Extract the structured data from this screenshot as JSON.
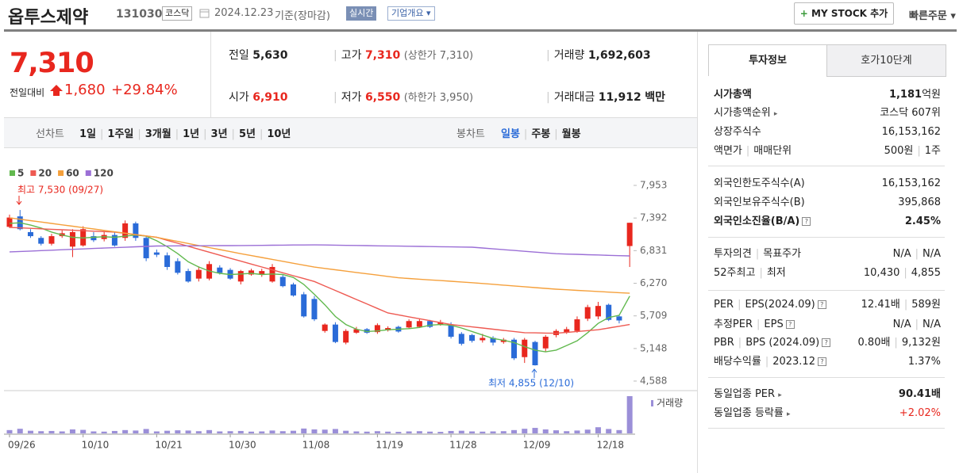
{
  "header": {
    "name": "옵투스제약",
    "code": "131030",
    "market": "코스닥",
    "date": "2024.12.23",
    "basis": "기준(장마감)",
    "realtime": "실시간",
    "company": "기업개요",
    "mystock": "MY STOCK 추가",
    "quick": "빠른주문"
  },
  "price": {
    "current": "7,310",
    "change_label": "전일대비",
    "change": "1,680",
    "rate": "+29.84%"
  },
  "summary": [
    {
      "label": "전일",
      "value": "5,630"
    },
    {
      "label": "고가",
      "value": "7,310",
      "note": "(상한가 7,310)"
    },
    {
      "label": "거래량",
      "value": "1,692,603"
    },
    {
      "label": "시가",
      "value": "6,910"
    },
    {
      "label": "저가",
      "value": "6,550",
      "note": "(하한가 3,950)"
    },
    {
      "label": "거래대금",
      "value": "11,912",
      "unit": "백만"
    }
  ],
  "chart_tabs": {
    "line_label": "선차트",
    "line": [
      "1일",
      "1주일",
      "3개월",
      "1년",
      "3년",
      "5년",
      "10년"
    ],
    "candle_label": "봉차트",
    "candle": [
      "일봉",
      "주봉",
      "월봉"
    ]
  },
  "chart_data": {
    "type": "candlestick",
    "categories": [
      "09/26",
      null,
      null,
      null,
      null,
      null,
      null,
      "10/10",
      null,
      null,
      null,
      null,
      null,
      null,
      "10/21",
      null,
      null,
      null,
      null,
      null,
      null,
      "10/30",
      null,
      null,
      null,
      null,
      null,
      null,
      "11/08",
      null,
      null,
      null,
      null,
      null,
      null,
      "11/19",
      null,
      null,
      null,
      null,
      null,
      null,
      "11/28",
      null,
      null,
      null,
      null,
      null,
      null,
      "12/09",
      null,
      null,
      null,
      null,
      null,
      null,
      "12/18",
      null,
      null,
      null
    ],
    "open": [
      7240,
      7420,
      7150,
      7050,
      6950,
      7080,
      6900,
      6920,
      7080,
      7030,
      7100,
      7050,
      7300,
      7050,
      6800,
      6750,
      6650,
      6480,
      6350,
      6350,
      6540,
      6500,
      6300,
      6420,
      6420,
      6300,
      6380,
      6250,
      6080,
      6000,
      5450,
      5560,
      5250,
      5420,
      5480,
      5430,
      5460,
      5520,
      5510,
      5520,
      5620,
      5560,
      5550,
      5400,
      5380,
      5290,
      5330,
      5260,
      5300,
      5000,
      5260,
      5150,
      5380,
      5420,
      5450,
      5660,
      5700,
      5900,
      5700,
      6910
    ],
    "high": [
      7450,
      7530,
      7200,
      7080,
      7120,
      7180,
      7200,
      7250,
      7150,
      7150,
      7150,
      7350,
      7330,
      7080,
      6850,
      6800,
      6700,
      6520,
      6560,
      6650,
      6580,
      6530,
      6500,
      6520,
      6520,
      6600,
      6420,
      6280,
      6120,
      6050,
      5580,
      5600,
      5480,
      5520,
      5500,
      5580,
      5530,
      5540,
      5650,
      5650,
      5640,
      5640,
      5600,
      5430,
      5400,
      5400,
      5360,
      5330,
      5330,
      5330,
      5280,
      5380,
      5480,
      5520,
      5700,
      5900,
      5950,
      5920,
      5720,
      7310
    ],
    "low": [
      7220,
      7180,
      7050,
      6920,
      6920,
      7050,
      6720,
      6900,
      6980,
      6990,
      6900,
      7000,
      7000,
      6650,
      6720,
      6500,
      6420,
      6280,
      6300,
      6320,
      6420,
      6330,
      6250,
      6400,
      6380,
      6280,
      6200,
      6040,
      5680,
      5620,
      5420,
      5240,
      5220,
      5400,
      5400,
      5400,
      5440,
      5420,
      5480,
      5500,
      5500,
      5540,
      5320,
      5200,
      5250,
      5250,
      5200,
      5230,
      4950,
      4900,
      4855,
      5100,
      5340,
      5400,
      5420,
      5620,
      5650,
      5620,
      5580,
      6550
    ],
    "close": [
      7400,
      7200,
      7080,
      6950,
      7080,
      7130,
      7150,
      7200,
      7010,
      7100,
      6920,
      7300,
      7050,
      6700,
      6760,
      6550,
      6450,
      6300,
      6500,
      6600,
      6450,
      6350,
      6480,
      6490,
      6480,
      6550,
      6220,
      6060,
      5700,
      5650,
      5560,
      5260,
      5450,
      5480,
      5420,
      5550,
      5500,
      5440,
      5620,
      5620,
      5520,
      5600,
      5350,
      5230,
      5280,
      5330,
      5250,
      5300,
      4980,
      5300,
      4860,
      5350,
      5450,
      5480,
      5650,
      5860,
      5880,
      5640,
      5630,
      7310
    ],
    "up_color": "#e8271e",
    "down_color": "#2a6bd8",
    "series": [
      {
        "name": "5",
        "color": "#62b94f",
        "values": [
          7300,
          7310,
          7270,
          7220,
          7150,
          7100,
          7060,
          7050,
          7060,
          7070,
          7060,
          7080,
          7100,
          7080,
          7000,
          6900,
          6780,
          6640,
          6550,
          6480,
          6440,
          6420,
          6430,
          6440,
          6420,
          6430,
          6420,
          6370,
          6250,
          6080,
          5900,
          5700,
          5560,
          5480,
          5440,
          5450,
          5470,
          5480,
          5490,
          5510,
          5550,
          5560,
          5550,
          5500,
          5440,
          5380,
          5320,
          5290,
          5250,
          5180,
          5120,
          5090,
          5120,
          5200,
          5280,
          5420,
          5580,
          5680,
          5720,
          6050
        ]
      },
      {
        "name": "20",
        "color": "#ee5a52",
        "values": [
          7230,
          7222,
          7214,
          7206,
          7198,
          7190,
          7182,
          7174,
          7166,
          7158,
          7150,
          7128,
          7105,
          7083,
          7060,
          7009,
          6958,
          6906,
          6855,
          6804,
          6752,
          6701,
          6650,
          6600,
          6550,
          6500,
          6450,
          6400,
          6350,
          6300,
          6223,
          6146,
          6069,
          5991,
          5914,
          5837,
          5760,
          5727,
          5693,
          5660,
          5627,
          5593,
          5560,
          5540,
          5520,
          5500,
          5480,
          5460,
          5440,
          5420,
          5417,
          5413,
          5410,
          5425,
          5440,
          5455,
          5470,
          5500,
          5530,
          5560
        ]
      },
      {
        "name": "60",
        "color": "#f5a03c",
        "values": [
          7395,
          7371,
          7347,
          7323,
          7299,
          7275,
          7251,
          7227,
          7203,
          7179,
          7155,
          7131,
          7107,
          7083,
          7059,
          7024,
          6989,
          6954,
          6919,
          6884,
          6849,
          6814,
          6779,
          6746,
          6713,
          6680,
          6647,
          6614,
          6581,
          6548,
          6525,
          6502,
          6479,
          6456,
          6433,
          6410,
          6387,
          6364,
          6352,
          6340,
          6328,
          6316,
          6304,
          6292,
          6280,
          6266,
          6252,
          6238,
          6224,
          6210,
          6196,
          6182,
          6168,
          6158,
          6148,
          6138,
          6128,
          6118,
          6108,
          6098
        ]
      },
      {
        "name": "120",
        "color": "#9b6fd6",
        "values": [
          6810,
          6817,
          6824,
          6831,
          6839,
          6846,
          6853,
          6860,
          6868,
          6875,
          6882,
          6889,
          6897,
          6904,
          6911,
          6912,
          6913,
          6914,
          6915,
          6916,
          6917,
          6918,
          6919,
          6920,
          6922,
          6924,
          6926,
          6928,
          6929,
          6930,
          6928,
          6925,
          6922,
          6920,
          6917,
          6914,
          6912,
          6909,
          6906,
          6904,
          6901,
          6898,
          6896,
          6893,
          6890,
          6876,
          6862,
          6848,
          6834,
          6820,
          6806,
          6792,
          6778,
          6772,
          6767,
          6761,
          6756,
          6750,
          6745,
          6740
        ]
      }
    ],
    "volume": {
      "name": "거래량",
      "color": "#9b8fd8",
      "values": [
        150000,
        210000,
        120000,
        100000,
        110000,
        90000,
        180000,
        160000,
        90000,
        80000,
        110000,
        150000,
        130000,
        200000,
        90000,
        120000,
        140000,
        130000,
        100000,
        150000,
        90000,
        100000,
        110000,
        80000,
        90000,
        130000,
        100000,
        120000,
        220000,
        180000,
        170000,
        200000,
        120000,
        90000,
        80000,
        100000,
        80000,
        70000,
        90000,
        100000,
        80000,
        70000,
        110000,
        120000,
        90000,
        80000,
        90000,
        100000,
        150000,
        210000,
        250000,
        180000,
        140000,
        100000,
        130000,
        170000,
        280000,
        200000,
        150000,
        1692603
      ]
    },
    "ylim": [
      4465,
      8348
    ],
    "yticks": [
      {
        "value": 7953,
        "label": "7,953"
      },
      {
        "value": 7392,
        "label": "7,392"
      },
      {
        "value": 6831,
        "label": "6,831"
      },
      {
        "value": 6270,
        "label": "6,270"
      },
      {
        "value": 5709,
        "label": "5,709"
      },
      {
        "value": 5148,
        "label": "5,148"
      },
      {
        "value": 4588,
        "label": "4,588"
      }
    ],
    "annotations": [
      "최고 7,530 (09/27)",
      "최저 4,855 (12/10)"
    ]
  },
  "panel": {
    "tabs": [
      "투자정보",
      "호가10단계"
    ],
    "rows": [
      {
        "label": [
          "시가총액"
        ],
        "value": [
          "1,181",
          "억원"
        ]
      },
      {
        "label": [
          "시가총액순위"
        ],
        "value": [
          "코스닥 607위"
        ]
      },
      {
        "label": [
          "상장주식수"
        ],
        "value": [
          "16,153,162"
        ]
      },
      {
        "label": [
          "액면가",
          "매매단위"
        ],
        "value": [
          "500원",
          "1주"
        ]
      },
      {
        "label": [
          "외국인한도주식수(A)"
        ],
        "value": [
          "16,153,162"
        ]
      },
      {
        "label": [
          "외국인보유주식수(B)"
        ],
        "value": [
          "395,868"
        ]
      },
      {
        "label": [
          "외국인소진율(B/A)"
        ],
        "value": [
          "2.45%"
        ]
      },
      {
        "label": [
          "투자의견",
          "목표주가"
        ],
        "value": [
          "N/A",
          "N/A"
        ]
      },
      {
        "label": [
          "52주최고",
          "최저"
        ],
        "value": [
          "10,430",
          "4,855"
        ]
      },
      {
        "label": [
          "PER",
          "EPS(2024.09)"
        ],
        "value": [
          "12.41배",
          "589원"
        ]
      },
      {
        "label": [
          "추정PER",
          "EPS"
        ],
        "value": [
          "N/A",
          "N/A"
        ]
      },
      {
        "label": [
          "PBR",
          "BPS (2024.09)"
        ],
        "value": [
          "0.80배",
          "9,132원"
        ]
      },
      {
        "label": [
          "배당수익률",
          "2023.12"
        ],
        "value": [
          "1.37%"
        ]
      },
      {
        "label": [
          "동일업종 PER"
        ],
        "value": [
          "90.41배"
        ]
      },
      {
        "label": [
          "동일업종 등락률"
        ],
        "value": [
          "+2.02%"
        ]
      }
    ]
  }
}
